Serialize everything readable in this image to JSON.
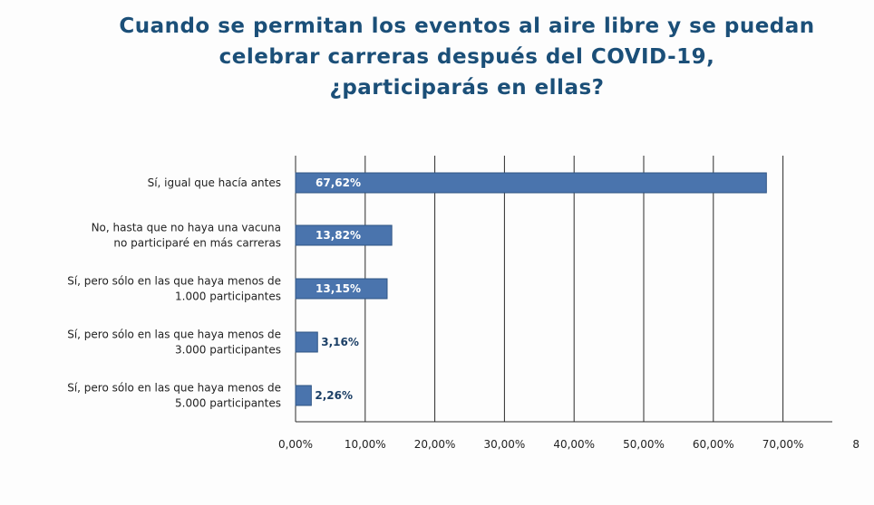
{
  "title_lines": [
    "Cuando se permitan los eventos al aire libre y se puedan",
    "celebrar carreras después del COVID-19,",
    "¿participarás en ellas?"
  ],
  "colors": {
    "title": "#1b4f78",
    "bar": "#4a74ad",
    "bar_border": "#2f5584",
    "value_label_inside": "#ffffff",
    "value_label_outside": "#1b3f66",
    "grid": "#2a2a2a"
  },
  "chart_data": {
    "type": "bar",
    "orientation": "horizontal",
    "categories": [
      [
        "Sí, igual que hacía antes"
      ],
      [
        "No, hasta que no haya una vacuna",
        "no participaré en más carreras"
      ],
      [
        "Sí, pero sólo en las que haya menos de",
        "1.000 participantes"
      ],
      [
        "Sí, pero sólo en las que haya menos de",
        "3.000 participantes"
      ],
      [
        "Sí, pero sólo en las que haya menos de",
        "5.000 participantes"
      ]
    ],
    "values": [
      67.62,
      13.82,
      13.15,
      3.16,
      2.26
    ],
    "value_labels": [
      "67,62%",
      "13,82%",
      "13,15%",
      "3,16%",
      "2,26%"
    ],
    "x_ticks": [
      "0,00%",
      "10,00%",
      "20,00%",
      "30,00%",
      "40,00%",
      "50,00%",
      "60,00%",
      "70,00%",
      "8"
    ],
    "xlim": [
      0,
      80
    ],
    "grid": true
  }
}
